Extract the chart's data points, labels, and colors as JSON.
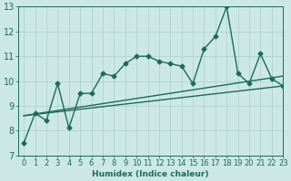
{
  "main_x": [
    0,
    1,
    2,
    3,
    4,
    5,
    6,
    7,
    8,
    9,
    10,
    11,
    12,
    13,
    14,
    15,
    16,
    17,
    18,
    19,
    20,
    21,
    22,
    23
  ],
  "main_y": [
    7.5,
    8.7,
    8.4,
    9.9,
    8.1,
    9.5,
    9.5,
    10.3,
    10.2,
    10.7,
    11.0,
    11.0,
    10.8,
    10.7,
    10.6,
    9.9,
    11.3,
    11.8,
    13.0,
    10.3,
    9.9,
    11.1,
    10.1,
    9.8
  ],
  "line2_x": [
    0,
    23
  ],
  "line2_y": [
    8.6,
    10.2
  ],
  "line3_x": [
    0,
    23
  ],
  "line3_y": [
    8.6,
    9.8
  ],
  "color": "#1a6b5a",
  "bg_color": "#cce8e5",
  "grid_color": "#aacfcc",
  "xlabel": "Humidex (Indice chaleur)",
  "ylim": [
    7,
    13
  ],
  "xlim": [
    -0.5,
    23
  ],
  "yticks": [
    7,
    8,
    9,
    10,
    11,
    12,
    13
  ],
  "xticks": [
    0,
    1,
    2,
    3,
    4,
    5,
    6,
    7,
    8,
    9,
    10,
    11,
    12,
    13,
    14,
    15,
    16,
    17,
    18,
    19,
    20,
    21,
    22,
    23
  ],
  "fontsize": 6.5,
  "marker": "D",
  "markersize": 2.5,
  "linewidth": 1.0
}
